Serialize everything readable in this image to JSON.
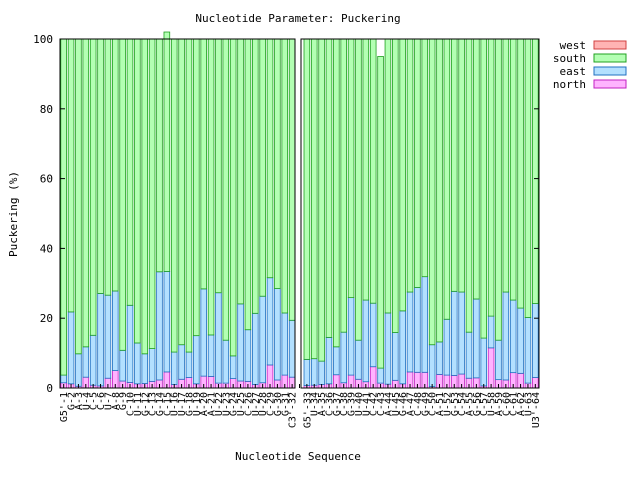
{
  "chart_data": {
    "type": "bar",
    "stacked": true,
    "title": "Nucleotide Parameter: Puckering",
    "xlabel": "Nucleotide Sequence",
    "ylabel": "Puckering (%)",
    "ylim": [
      0,
      100
    ],
    "yticks": [
      "0",
      "20",
      "40",
      "60",
      "80",
      "100"
    ],
    "grid": false,
    "legend_position": "top-right",
    "categories": [
      "G5'-1",
      "G-2",
      "A-3",
      "U-4",
      "C-5",
      "C-6",
      "U-7",
      "A-8",
      "G-9",
      "C-10",
      "U-11",
      "G-12",
      "C-13",
      "G-14",
      "C-15",
      "U-16",
      "U-17",
      "G-18",
      "U-19",
      "A-20",
      "A-21",
      "U-22",
      "U-23",
      "G-24",
      "U-25",
      "C-26",
      "U-27",
      "U-28",
      "C-29",
      "G-30",
      "G-31",
      "C3'-32",
      "",
      "G5'-33",
      "U-34",
      "A-35",
      "C-36",
      "G-37",
      "C-38",
      "G-39",
      "U-40",
      "U-41",
      "C-42",
      "C-43",
      "A-44",
      "U-45",
      "G-46",
      "A-47",
      "C-48",
      "G-49",
      "C-50",
      "A-51",
      "U-52",
      "G-53",
      "C-54",
      "A-55",
      "G-56",
      "C-57",
      "U-58",
      "A-59",
      "C-60",
      "C-61",
      "A-62",
      "U-63",
      "U3'-64"
    ],
    "series": [
      {
        "name": "west",
        "color": "#ffb3b3",
        "values": [
          0,
          0,
          0,
          0,
          0,
          0,
          0,
          0,
          0,
          0,
          0,
          0,
          0,
          0,
          0,
          0,
          0,
          0,
          0,
          0,
          0,
          0,
          0,
          0,
          0,
          0,
          0,
          0,
          0,
          0,
          0,
          0,
          null,
          0,
          0,
          0,
          0,
          0,
          0,
          0,
          0,
          0,
          0,
          0,
          0,
          0,
          0,
          0,
          0,
          0,
          0,
          0,
          0,
          0,
          0,
          0,
          0,
          0,
          0,
          0,
          0,
          0,
          0,
          0,
          0
        ]
      },
      {
        "name": "south",
        "color": "#b3ffb3",
        "values": [
          96.3,
          78.2,
          90.2,
          88.2,
          84.9,
          72.9,
          73.4,
          72.2,
          89.2,
          76.3,
          87.1,
          90.2,
          88.7,
          66.7,
          68.6,
          89.7,
          87.6,
          89.7,
          85,
          71.6,
          84.8,
          72.7,
          86.3,
          90.8,
          75.9,
          83.3,
          78.6,
          73.7,
          68.4,
          71.5,
          78.5,
          80.6,
          null,
          91.8,
          91.6,
          92.3,
          85.5,
          88.2,
          84,
          74.1,
          86.3,
          74.8,
          75.7,
          89.3,
          78.5,
          84.1,
          77.9,
          72.5,
          71.2,
          68.1,
          87.6,
          86.8,
          80.3,
          72.3,
          72.5,
          84,
          74.5,
          85.7,
          79.4,
          86.3,
          72.5,
          74.8,
          77.1,
          79.8,
          75.8
        ]
      },
      {
        "name": "east",
        "color": "#b3e0ff",
        "values": [
          2.2,
          20.6,
          9.3,
          8.7,
          14.3,
          26.5,
          23.8,
          22.8,
          8.8,
          22.1,
          11.7,
          8.5,
          9.4,
          31,
          28.8,
          9.3,
          9.9,
          7.3,
          13.8,
          25,
          11.9,
          25.9,
          12.3,
          6.5,
          22.1,
          14.8,
          20.4,
          24.8,
          25,
          26.2,
          17.8,
          16.3,
          null,
          7.5,
          7.6,
          6.7,
          13.3,
          8,
          14.5,
          22.2,
          11.2,
          23.4,
          18.2,
          4.3,
          20.4,
          13.7,
          20.9,
          22.9,
          24.3,
          27.4,
          12,
          9.3,
          16,
          24.1,
          23.5,
          13.2,
          22.6,
          13.7,
          9.1,
          11.3,
          25.2,
          20.8,
          18.7,
          18.8,
          21.2
        ]
      },
      {
        "name": "north",
        "color": "#ffb3ff",
        "values": [
          1.5,
          1.2,
          0.5,
          3.1,
          0.8,
          0.6,
          2.8,
          5,
          2,
          1.6,
          1.2,
          1.3,
          1.9,
          2.3,
          4.6,
          1,
          2.5,
          3,
          1.2,
          3.4,
          3.3,
          1.4,
          1.4,
          2.7,
          2,
          1.9,
          1,
          1.5,
          6.6,
          2.3,
          3.7,
          3.1,
          null,
          0.7,
          0.8,
          1,
          1.2,
          3.8,
          1.5,
          3.7,
          2.5,
          1.8,
          6.1,
          1.4,
          1.1,
          2.2,
          1.2,
          4.6,
          4.5,
          4.5,
          0.4,
          3.9,
          3.7,
          3.6,
          4,
          2.8,
          2.9,
          0.6,
          11.5,
          2.4,
          2.3,
          4.4,
          4.2,
          1.4,
          3
        ]
      }
    ]
  }
}
